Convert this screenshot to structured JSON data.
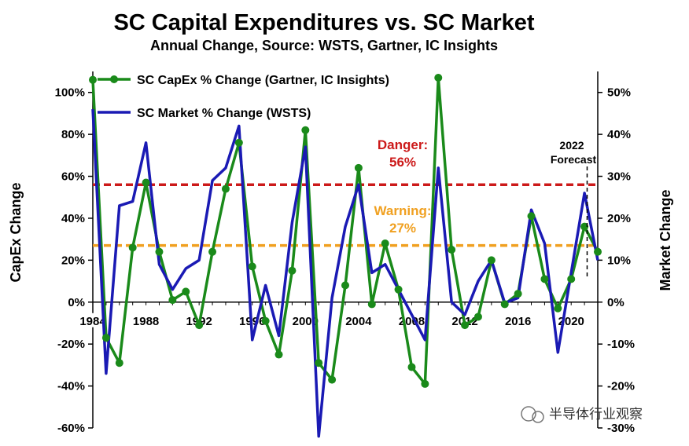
{
  "chart_data": {
    "type": "line",
    "title": "SC Capital Expenditures vs. SC Market",
    "subtitle": "Annual Change, Source: WSTS, Gartner, IC Insights",
    "xlabel": "",
    "ylabel": "CapEx Change",
    "y2label": "Market Change",
    "x": [
      1984,
      1985,
      1986,
      1987,
      1988,
      1989,
      1990,
      1991,
      1992,
      1993,
      1994,
      1995,
      1996,
      1997,
      1998,
      1999,
      2000,
      2001,
      2002,
      2003,
      2004,
      2005,
      2006,
      2007,
      2008,
      2009,
      2010,
      2011,
      2012,
      2013,
      2014,
      2015,
      2016,
      2017,
      2018,
      2019,
      2020,
      2021,
      2022
    ],
    "xticks": [
      "1984",
      "1988",
      "1992",
      "1996",
      "2000",
      "2004",
      "2008",
      "2012",
      "2016",
      "2020"
    ],
    "xlim": [
      1984,
      2022
    ],
    "ylim": [
      -60,
      110
    ],
    "y2lim": [
      -30,
      55
    ],
    "yticks": [
      "-60%",
      "-40%",
      "-20%",
      "0%",
      "20%",
      "40%",
      "60%",
      "80%",
      "100%"
    ],
    "y2ticks": [
      "-30%",
      "-20%",
      "-10%",
      "0%",
      "10%",
      "20%",
      "30%",
      "40%",
      "50%"
    ],
    "grid": false,
    "legend_position": "top-left",
    "series": [
      {
        "name": "SC CapEx % Change (Gartner, IC Insights)",
        "axis": "left",
        "color": "#1a8a1a",
        "marker": "circle",
        "values": [
          106,
          -17,
          -29,
          26,
          57,
          24,
          1,
          5,
          -11,
          24,
          54,
          76,
          17,
          -9,
          -25,
          15,
          82,
          -29,
          -37,
          8,
          64,
          -1,
          28,
          6,
          -31,
          -39,
          107,
          25,
          -11,
          -7,
          20,
          -1,
          4,
          41,
          11,
          -3,
          11,
          36,
          24
        ]
      },
      {
        "name": "SC Market % Change (WSTS)",
        "axis": "right",
        "color": "#1a1ab4",
        "marker": "none",
        "values": [
          46,
          -17,
          23,
          24,
          38,
          9,
          3,
          8,
          10,
          29,
          32,
          42,
          -9,
          4,
          -8,
          19,
          37,
          -32,
          1,
          18,
          28,
          7,
          9,
          3,
          -3,
          -9,
          32,
          0,
          -3,
          5,
          10,
          -0.2,
          1,
          22,
          14,
          -12,
          7,
          26,
          10
        ]
      }
    ],
    "reference_lines": [
      {
        "value": 56,
        "color": "#cc1a1a",
        "label_top": "Danger:",
        "label_bottom": "56%"
      },
      {
        "value": 27,
        "color": "#f0a020",
        "label_top": "Warning:",
        "label_bottom": "27%"
      }
    ],
    "forecast_label_top": "2022",
    "forecast_label_bottom": "Forecast"
  },
  "watermark": "半导体行业观察"
}
